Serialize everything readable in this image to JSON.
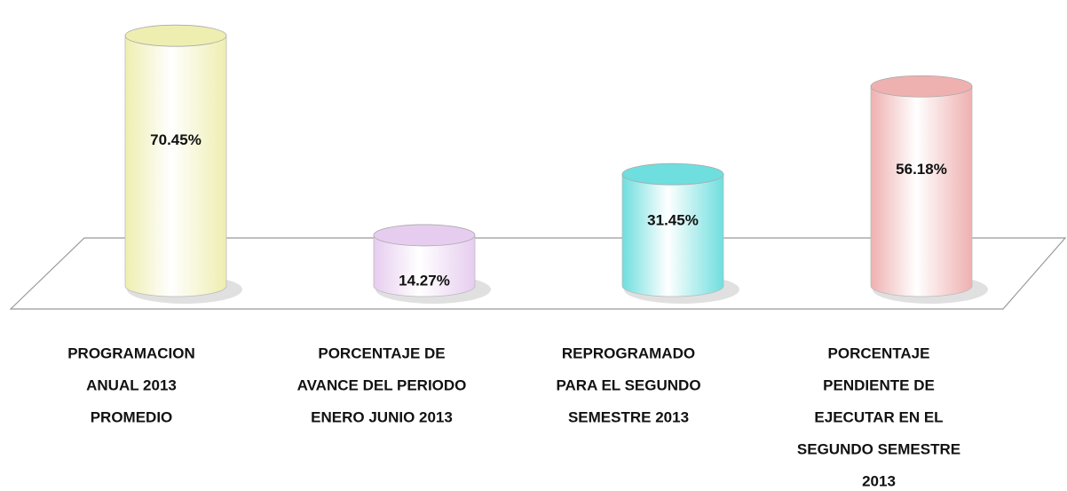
{
  "chart_data": {
    "type": "cylinder",
    "categories": [
      [
        "PROGRAMACION",
        "ANUAL 2013",
        "PROMEDIO"
      ],
      [
        "PORCENTAJE  DE",
        "AVANCE DEL PERIODO",
        "ENERO JUNIO 2013"
      ],
      [
        "REPROGRAMADO",
        "PARA EL SEGUNDO",
        "SEMESTRE  2013"
      ],
      [
        "PORCENTAJE",
        "PENDIENTE DE",
        "EJECUTAR EN EL",
        "SEGUNDO SEMESTRE",
        "2013"
      ]
    ],
    "values": [
      70.45,
      14.27,
      31.45,
      56.18
    ],
    "value_labels": [
      "70.45%",
      "14.27%",
      "31.45%",
      "56.18%"
    ],
    "colors": [
      "#eeeeb0",
      "#e6cdef",
      "#6fdede",
      "#efb0b0"
    ]
  }
}
